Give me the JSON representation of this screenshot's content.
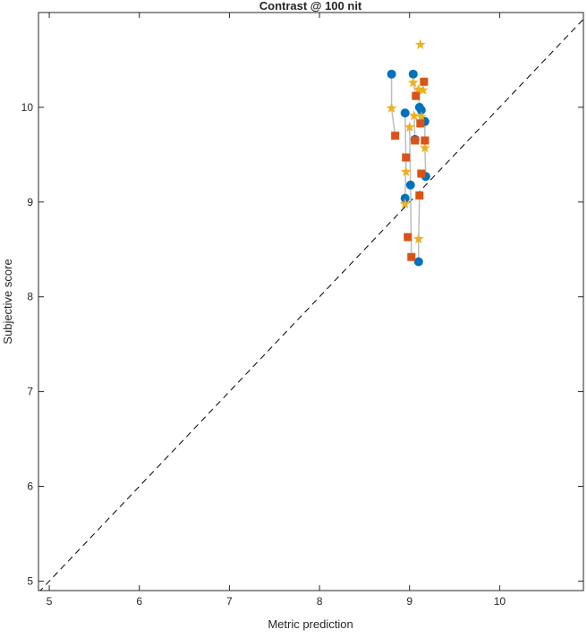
{
  "chart_data": {
    "type": "scatter",
    "title": "Contrast @ 100 nit",
    "xlabel": "Metric prediction",
    "ylabel": "Subjective score",
    "xlim": [
      4.88,
      10.93
    ],
    "ylim": [
      4.9,
      11.0
    ],
    "xticks": [
      5,
      6,
      7,
      8,
      9,
      10
    ],
    "yticks": [
      5,
      6,
      7,
      8,
      9,
      10
    ],
    "grid": false,
    "reference_line": "y = x (dashed)",
    "series": [
      {
        "name": "circle",
        "marker": "circle",
        "color": "#0072BD",
        "x": [
          8.8,
          9.04,
          9.11,
          9.13,
          9.17,
          8.95,
          9.06,
          9.18,
          9.01,
          8.95,
          9.1
        ],
        "y": [
          10.35,
          10.35,
          10.0,
          9.97,
          9.85,
          9.94,
          9.66,
          9.27,
          9.18,
          9.04,
          8.37
        ]
      },
      {
        "name": "star",
        "marker": "star",
        "color": "#EDB120",
        "x": [
          9.12,
          9.04,
          8.8,
          9.1,
          9.15,
          9.05,
          9.13,
          9.0,
          9.17,
          8.96,
          8.95,
          9.1
        ],
        "y": [
          10.66,
          10.26,
          9.99,
          10.19,
          10.18,
          9.91,
          9.9,
          9.79,
          9.57,
          9.32,
          8.98,
          8.61
        ]
      },
      {
        "name": "square",
        "marker": "square",
        "color": "#D95319",
        "x": [
          9.16,
          9.07,
          8.84,
          9.12,
          9.06,
          9.17,
          8.96,
          9.13,
          9.11,
          8.98,
          9.02
        ],
        "y": [
          10.27,
          10.12,
          9.7,
          9.83,
          9.65,
          9.65,
          9.47,
          9.3,
          9.07,
          8.63,
          8.42
        ]
      }
    ]
  }
}
